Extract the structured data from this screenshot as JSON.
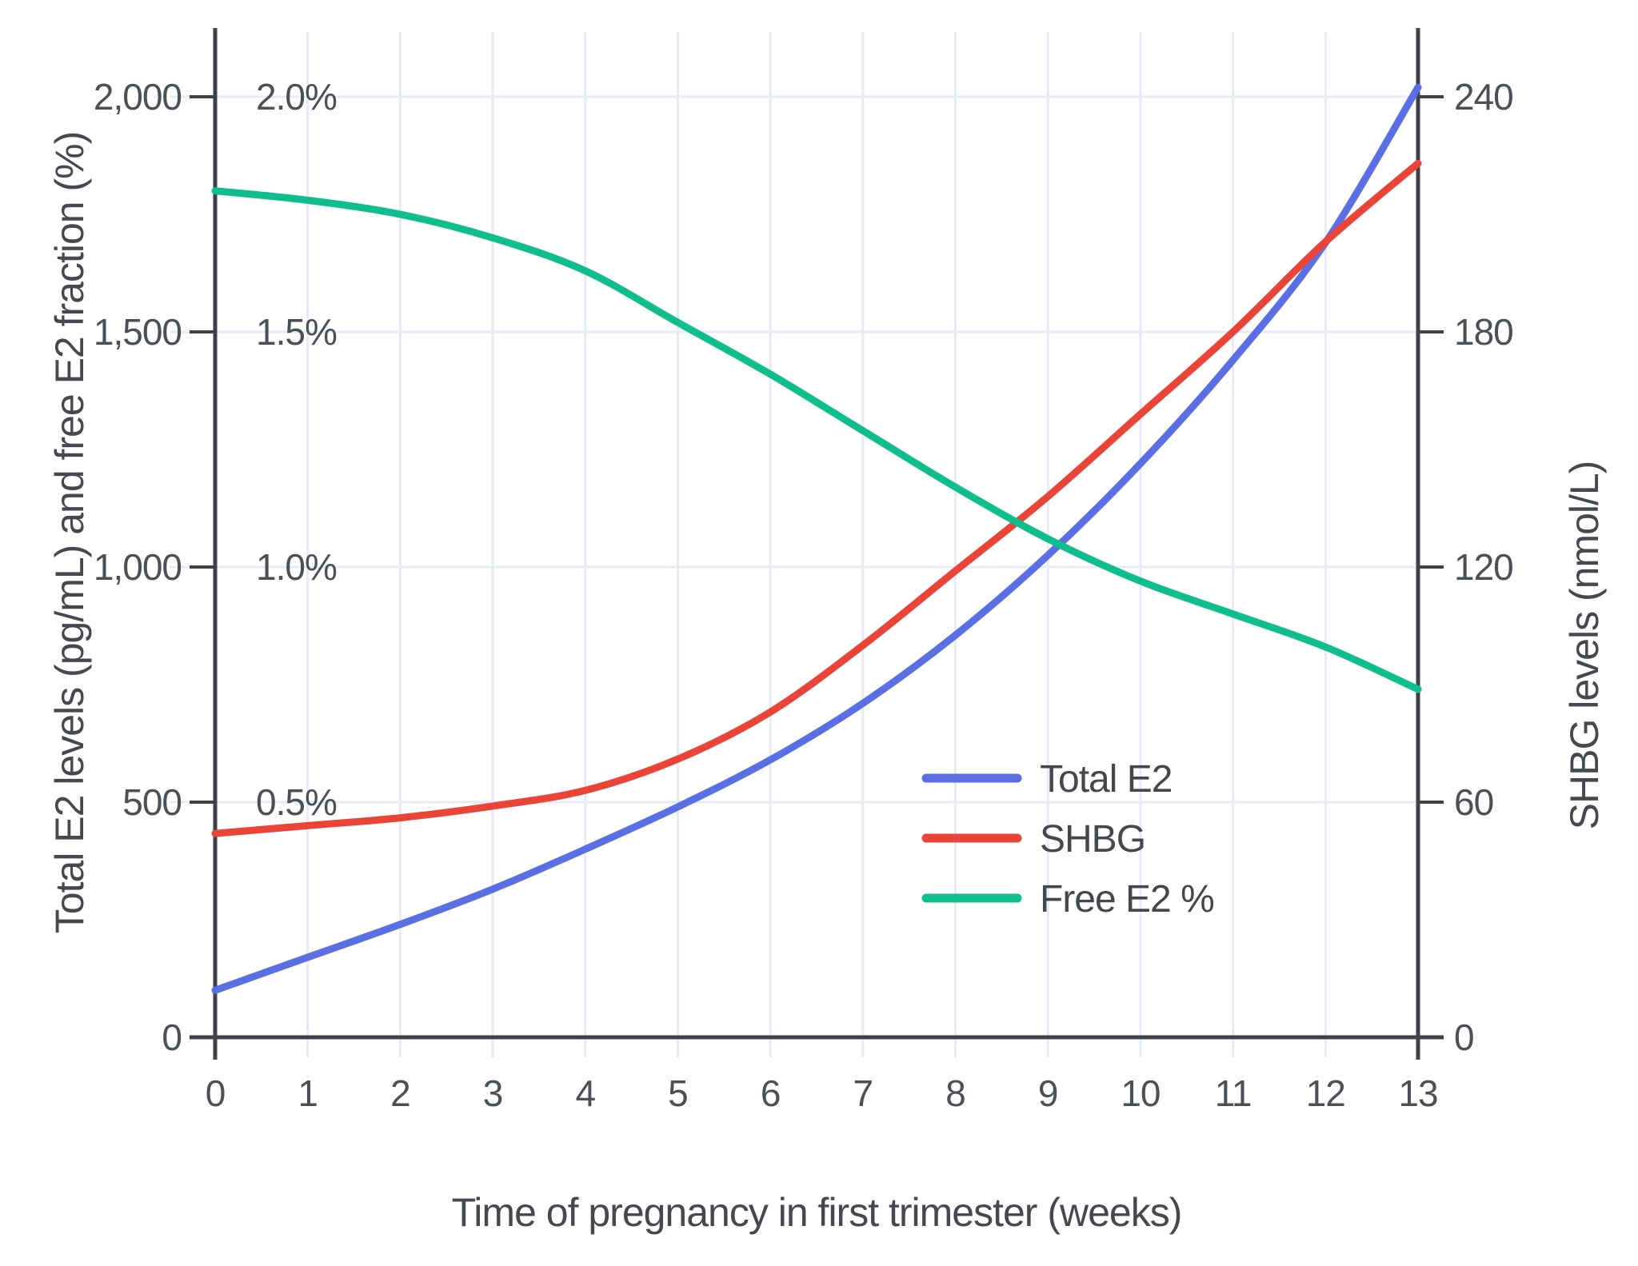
{
  "chart_data": {
    "type": "line",
    "x": [
      0,
      1,
      2,
      3,
      4,
      5,
      6,
      7,
      8,
      9,
      10,
      11,
      12,
      13
    ],
    "x_ticks": [
      "0",
      "1",
      "2",
      "3",
      "4",
      "5",
      "6",
      "7",
      "8",
      "9",
      "10",
      "11",
      "12",
      "13"
    ],
    "xlabel": "Time of pregnancy in first trimester (weeks)",
    "left_axis": {
      "label": "Total E2 levels (pg/mL) and free E2 fraction (%)",
      "tick_labels": [
        "0",
        "500",
        "1,000",
        "1,500",
        "2,000"
      ],
      "tick_values": [
        0,
        500,
        1000,
        1500,
        2000
      ],
      "range": [
        0,
        2000
      ]
    },
    "right_axis": {
      "label": "SHBG levels (nmol/L)",
      "tick_labels": [
        "0",
        "60",
        "120",
        "180",
        "240"
      ],
      "tick_values": [
        0,
        60,
        120,
        180,
        240
      ],
      "range": [
        0,
        240
      ]
    },
    "percent_annotations": [
      {
        "text": "0.5%",
        "value": 500
      },
      {
        "text": "1.0%",
        "value": 1000
      },
      {
        "text": "1.5%",
        "value": 1500
      },
      {
        "text": "2.0%",
        "value": 2000
      }
    ],
    "series": [
      {
        "name": "Total E2",
        "unit": "pg/mL",
        "axis": "left",
        "scale": "left",
        "color": "#5a6fe4",
        "values": [
          100,
          170,
          240,
          315,
          400,
          490,
          590,
          710,
          855,
          1025,
          1220,
          1440,
          1690,
          2020
        ]
      },
      {
        "name": "SHBG",
        "unit": "nmol/L",
        "axis": "right",
        "scale": "right",
        "color": "#ea4439",
        "values": [
          52,
          54,
          56,
          59,
          63,
          71,
          83,
          100,
          119,
          138,
          159,
          180,
          203,
          223
        ]
      },
      {
        "name": "Free E2 %",
        "unit": "%",
        "axis": "left-percent",
        "scale": "percent",
        "color": "#0fbe8c",
        "values": [
          1.8,
          1.78,
          1.75,
          1.7,
          1.63,
          1.52,
          1.41,
          1.29,
          1.17,
          1.06,
          0.97,
          0.9,
          0.83,
          0.74
        ]
      }
    ],
    "legend": {
      "position": "inside-right",
      "items": [
        "Total E2",
        "SHBG",
        "Free E2 %"
      ]
    },
    "grid": true
  },
  "colors": {
    "grid": "#e7ebf6",
    "axis": "#3e4248",
    "text": "#4b4f56",
    "background": "#ffffff",
    "total_e2": "#5a6fe4",
    "shbg": "#ea4439",
    "free_e2": "#0fbe8c"
  }
}
